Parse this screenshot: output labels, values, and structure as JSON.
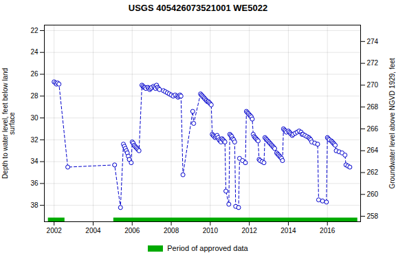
{
  "chart_data": {
    "type": "line",
    "title": "USGS 405426073521001 WE5022",
    "ylabel": "Depth to water level, feet below land\nsurface",
    "y2label": "Groundwater level above NGVD 1929, feet",
    "x": [
      2002.0,
      2002.07,
      2002.12,
      2002.18,
      2002.25,
      2002.7,
      2005.1,
      2005.4,
      2005.55,
      2005.6,
      2005.65,
      2005.7,
      2005.75,
      2005.8,
      2005.85,
      2005.95,
      2006.0,
      2006.05,
      2006.1,
      2006.15,
      2006.2,
      2006.25,
      2006.3,
      2006.35,
      2006.5,
      2006.55,
      2006.6,
      2006.65,
      2006.7,
      2006.8,
      2006.85,
      2006.9,
      2006.95,
      2007.0,
      2007.1,
      2007.15,
      2007.2,
      2007.25,
      2007.3,
      2007.35,
      2007.4,
      2007.6,
      2007.7,
      2007.8,
      2007.9,
      2008.0,
      2008.1,
      2008.2,
      2008.3,
      2008.35,
      2008.4,
      2008.45,
      2008.5,
      2008.6,
      2009.1,
      2009.15,
      2009.5,
      2009.55,
      2009.6,
      2009.65,
      2009.7,
      2009.75,
      2009.8,
      2009.85,
      2009.9,
      2009.95,
      2010.0,
      2010.05,
      2010.1,
      2010.15,
      2010.2,
      2010.25,
      2010.3,
      2010.35,
      2010.4,
      2010.45,
      2010.5,
      2010.55,
      2010.6,
      2010.65,
      2010.7,
      2010.75,
      2010.8,
      2010.95,
      2011.0,
      2011.05,
      2011.1,
      2011.15,
      2011.2,
      2011.25,
      2011.3,
      2011.45,
      2011.5,
      2011.65,
      2011.8,
      2011.85,
      2011.9,
      2011.95,
      2012.0,
      2012.05,
      2012.1,
      2012.15,
      2012.2,
      2012.25,
      2012.3,
      2012.35,
      2012.4,
      2012.45,
      2012.5,
      2012.55,
      2012.65,
      2012.75,
      2012.8,
      2012.85,
      2012.9,
      2012.95,
      2013.0,
      2013.05,
      2013.1,
      2013.15,
      2013.2,
      2013.25,
      2013.3,
      2013.4,
      2013.45,
      2013.5,
      2013.55,
      2013.6,
      2013.65,
      2013.7,
      2013.75,
      2013.8,
      2013.85,
      2013.9,
      2014.0,
      2014.05,
      2014.1,
      2014.15,
      2014.2,
      2014.25,
      2014.35,
      2014.45,
      2014.55,
      2014.65,
      2014.7,
      2014.75,
      2014.85,
      2014.95,
      2015.05,
      2015.1,
      2015.15,
      2015.2,
      2015.35,
      2015.5,
      2015.55,
      2015.75,
      2015.95,
      2016.0,
      2016.05,
      2016.1,
      2016.2,
      2016.25,
      2016.3,
      2016.35,
      2016.4,
      2016.45,
      2016.6,
      2016.75,
      2016.9,
      2016.95,
      2017.05,
      2017.15
    ],
    "values": [
      26.7,
      26.8,
      26.9,
      26.8,
      26.9,
      34.5,
      34.3,
      38.2,
      32.4,
      32.6,
      32.8,
      33.0,
      33.2,
      33.5,
      33.8,
      34.1,
      32.2,
      32.3,
      32.5,
      32.6,
      32.7,
      32.8,
      32.9,
      33.0,
      27.0,
      27.1,
      27.2,
      27.2,
      27.3,
      27.2,
      27.3,
      27.4,
      27.3,
      27.2,
      27.1,
      27.2,
      27.3,
      27.0,
      27.2,
      27.3,
      27.4,
      27.5,
      27.6,
      27.7,
      27.8,
      27.9,
      28.0,
      27.9,
      28.0,
      28.1,
      28.0,
      27.9,
      28.0,
      35.2,
      29.4,
      30.5,
      27.8,
      27.9,
      28.0,
      28.1,
      28.2,
      28.3,
      28.4,
      28.5,
      28.5,
      28.6,
      28.7,
      28.8,
      31.5,
      31.6,
      31.7,
      31.8,
      31.7,
      31.6,
      31.8,
      32.0,
      32.1,
      32.2,
      31.9,
      32.0,
      32.1,
      32.2,
      36.7,
      37.9,
      31.5,
      31.6,
      31.7,
      31.9,
      32.0,
      32.2,
      38.1,
      38.2,
      33.7,
      33.9,
      34.1,
      29.4,
      29.5,
      29.6,
      29.7,
      29.8,
      29.9,
      30.1,
      31.5,
      31.7,
      31.8,
      31.9,
      32.0,
      32.1,
      33.8,
      33.9,
      34.0,
      34.1,
      31.8,
      31.9,
      32.0,
      32.1,
      32.2,
      32.3,
      32.4,
      32.5,
      32.6,
      32.7,
      32.8,
      33.2,
      33.3,
      33.4,
      33.5,
      33.6,
      33.7,
      33.9,
      31.0,
      31.1,
      31.2,
      31.3,
      31.2,
      31.3,
      31.4,
      31.5,
      31.6,
      31.5,
      31.4,
      31.3,
      31.2,
      31.3,
      31.5,
      31.5,
      31.6,
      31.7,
      31.8,
      31.9,
      32.0,
      32.2,
      32.3,
      32.4,
      37.5,
      37.6,
      37.7,
      31.8,
      31.9,
      32.0,
      32.1,
      32.2,
      32.3,
      32.4,
      32.5,
      33.0,
      33.1,
      33.2,
      33.4,
      34.3,
      34.4,
      34.5
    ],
    "color": "#0000cc",
    "marker": "circle",
    "line_style": "dashed",
    "xlim": [
      2001.5,
      2017.7
    ],
    "xticks": [
      2002,
      2004,
      2006,
      2008,
      2010,
      2012,
      2014,
      2016
    ],
    "ylim": [
      39.5,
      21.5
    ],
    "yticks": [
      22,
      24,
      26,
      28,
      30,
      32,
      34,
      36,
      38
    ],
    "y2lim": [
      257.5,
      275.5
    ],
    "y2ticks": [
      274,
      272,
      270,
      268,
      266,
      264,
      262,
      260,
      258
    ],
    "grid": true,
    "legend": "bottom",
    "approved_periods": {
      "name": "Period of approved data",
      "color": "#00aa00",
      "segments": [
        [
          2001.7,
          2002.55
        ],
        [
          2005.05,
          2017.55
        ]
      ]
    }
  }
}
